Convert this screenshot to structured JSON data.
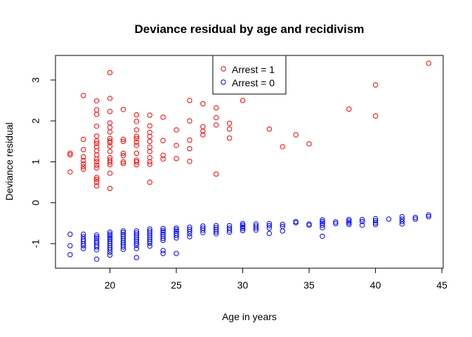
{
  "chart_data": {
    "type": "scatter",
    "title": "Deviance residual by age and recidivism",
    "xlabel": "Age in years",
    "ylabel": "Deviance residual",
    "xlim": [
      15.9,
      45.1
    ],
    "ylim": [
      -1.6,
      3.6
    ],
    "xticks": [
      20,
      25,
      30,
      35,
      40,
      45
    ],
    "yticks": [
      -1,
      0,
      1,
      2,
      3
    ],
    "grid": false,
    "legend_position": "top-center",
    "series": [
      {
        "name": "Arrest = 1",
        "color": "#ff0000",
        "points": [
          [
            17,
            0.75
          ],
          [
            17,
            1.17
          ],
          [
            17,
            1.21
          ],
          [
            18,
            0.82
          ],
          [
            18,
            0.88
          ],
          [
            18,
            0.95
          ],
          [
            18,
            1.03
          ],
          [
            18,
            1.12
          ],
          [
            18,
            1.3
          ],
          [
            18,
            1.55
          ],
          [
            18,
            2.62
          ],
          [
            19,
            0.41
          ],
          [
            19,
            0.5
          ],
          [
            19,
            0.57
          ],
          [
            19,
            0.62
          ],
          [
            19,
            0.85
          ],
          [
            19,
            0.92
          ],
          [
            19,
            1.0
          ],
          [
            19,
            1.07
          ],
          [
            19,
            1.17
          ],
          [
            19,
            1.27
          ],
          [
            19,
            1.37
          ],
          [
            19,
            1.45
          ],
          [
            19,
            1.51
          ],
          [
            19,
            1.63
          ],
          [
            19,
            1.87
          ],
          [
            19,
            2.16
          ],
          [
            19,
            2.27
          ],
          [
            19,
            2.49
          ],
          [
            20,
            0.35
          ],
          [
            20,
            0.72
          ],
          [
            20,
            0.93
          ],
          [
            20,
            0.99
          ],
          [
            20,
            1.04
          ],
          [
            20,
            1.1
          ],
          [
            20,
            1.25
          ],
          [
            20,
            1.38
          ],
          [
            20,
            1.47
          ],
          [
            20,
            1.51
          ],
          [
            20,
            1.57
          ],
          [
            20,
            1.73
          ],
          [
            20,
            1.84
          ],
          [
            20,
            1.95
          ],
          [
            20,
            2.23
          ],
          [
            20,
            2.55
          ],
          [
            20,
            3.18
          ],
          [
            21,
            0.96
          ],
          [
            21,
            1.0
          ],
          [
            21,
            1.15
          ],
          [
            21,
            1.21
          ],
          [
            21,
            1.5
          ],
          [
            21,
            1.55
          ],
          [
            21,
            2.28
          ],
          [
            22,
            0.93
          ],
          [
            22,
            1.0
          ],
          [
            22,
            1.04
          ],
          [
            22,
            1.21
          ],
          [
            22,
            1.4
          ],
          [
            22,
            1.48
          ],
          [
            22,
            1.57
          ],
          [
            22,
            1.62
          ],
          [
            22,
            1.78
          ],
          [
            22,
            1.99
          ],
          [
            22,
            2.15
          ],
          [
            23,
            0.5
          ],
          [
            23,
            0.94
          ],
          [
            23,
            1.0
          ],
          [
            23,
            1.1
          ],
          [
            23,
            1.25
          ],
          [
            23,
            1.36
          ],
          [
            23,
            1.5
          ],
          [
            23,
            1.62
          ],
          [
            23,
            1.72
          ],
          [
            23,
            1.88
          ],
          [
            23,
            2.14
          ],
          [
            24,
            1.07
          ],
          [
            24,
            1.16
          ],
          [
            24,
            1.52
          ],
          [
            24,
            2.09
          ],
          [
            25,
            1.08
          ],
          [
            25,
            1.4
          ],
          [
            25,
            1.78
          ],
          [
            26,
            1.01
          ],
          [
            26,
            1.32
          ],
          [
            26,
            1.53
          ],
          [
            26,
            2.0
          ],
          [
            26,
            2.5
          ],
          [
            27,
            1.66
          ],
          [
            27,
            1.75
          ],
          [
            27,
            1.86
          ],
          [
            27,
            2.42
          ],
          [
            28,
            0.7
          ],
          [
            28,
            1.9
          ],
          [
            28,
            2.08
          ],
          [
            28,
            2.32
          ],
          [
            29,
            1.58
          ],
          [
            29,
            1.8
          ],
          [
            29,
            1.94
          ],
          [
            30,
            2.5
          ],
          [
            32,
            1.8
          ],
          [
            33,
            1.37
          ],
          [
            34,
            1.66
          ],
          [
            35,
            1.44
          ],
          [
            38,
            2.29
          ],
          [
            40,
            2.12
          ],
          [
            40,
            2.88
          ],
          [
            44,
            3.41
          ]
        ]
      },
      {
        "name": "Arrest = 0",
        "color": "#0000ff",
        "points": [
          [
            17,
            -0.77
          ],
          [
            17,
            -1.05
          ],
          [
            17,
            -1.27
          ],
          [
            18,
            -0.77
          ],
          [
            18,
            -0.83
          ],
          [
            18,
            -0.89
          ],
          [
            18,
            -0.94
          ],
          [
            18,
            -1.0
          ],
          [
            18,
            -1.05
          ],
          [
            18,
            -1.12
          ],
          [
            19,
            -0.79
          ],
          [
            19,
            -0.84
          ],
          [
            19,
            -0.88
          ],
          [
            19,
            -0.93
          ],
          [
            19,
            -0.98
          ],
          [
            19,
            -1.04
          ],
          [
            19,
            -1.08
          ],
          [
            19,
            -1.15
          ],
          [
            19,
            -1.38
          ],
          [
            20,
            -0.72
          ],
          [
            20,
            -0.77
          ],
          [
            20,
            -0.81
          ],
          [
            20,
            -0.86
          ],
          [
            20,
            -0.9
          ],
          [
            20,
            -0.95
          ],
          [
            20,
            -1.0
          ],
          [
            20,
            -1.05
          ],
          [
            20,
            -1.1
          ],
          [
            20,
            -1.15
          ],
          [
            20,
            -1.21
          ],
          [
            20,
            -1.28
          ],
          [
            21,
            -0.69
          ],
          [
            21,
            -0.73
          ],
          [
            21,
            -0.78
          ],
          [
            21,
            -0.83
          ],
          [
            21,
            -0.88
          ],
          [
            21,
            -0.93
          ],
          [
            21,
            -0.98
          ],
          [
            21,
            -1.03
          ],
          [
            21,
            -1.08
          ],
          [
            21,
            -1.14
          ],
          [
            22,
            -0.69
          ],
          [
            22,
            -0.74
          ],
          [
            22,
            -0.79
          ],
          [
            22,
            -0.84
          ],
          [
            22,
            -0.89
          ],
          [
            22,
            -0.94
          ],
          [
            22,
            -0.99
          ],
          [
            22,
            -1.04
          ],
          [
            22,
            -1.12
          ],
          [
            22,
            -1.34
          ],
          [
            23,
            -0.64
          ],
          [
            23,
            -0.69
          ],
          [
            23,
            -0.74
          ],
          [
            23,
            -0.79
          ],
          [
            23,
            -0.84
          ],
          [
            23,
            -0.89
          ],
          [
            23,
            -0.94
          ],
          [
            23,
            -0.99
          ],
          [
            23,
            -1.06
          ],
          [
            24,
            -0.63
          ],
          [
            24,
            -0.68
          ],
          [
            24,
            -0.72
          ],
          [
            24,
            -0.77
          ],
          [
            24,
            -0.82
          ],
          [
            24,
            -0.87
          ],
          [
            24,
            -0.92
          ],
          [
            24,
            -1.17
          ],
          [
            24,
            -1.24
          ],
          [
            25,
            -0.62
          ],
          [
            25,
            -0.66
          ],
          [
            25,
            -0.7
          ],
          [
            25,
            -0.75
          ],
          [
            25,
            -0.8
          ],
          [
            25,
            -0.86
          ],
          [
            25,
            -1.24
          ],
          [
            26,
            -0.6
          ],
          [
            26,
            -0.65
          ],
          [
            26,
            -0.7
          ],
          [
            26,
            -0.76
          ],
          [
            26,
            -0.83
          ],
          [
            27,
            -0.57
          ],
          [
            27,
            -0.62
          ],
          [
            27,
            -0.67
          ],
          [
            27,
            -0.73
          ],
          [
            28,
            -0.56
          ],
          [
            28,
            -0.61
          ],
          [
            28,
            -0.66
          ],
          [
            28,
            -0.71
          ],
          [
            28,
            -0.76
          ],
          [
            29,
            -0.56
          ],
          [
            29,
            -0.62
          ],
          [
            29,
            -0.67
          ],
          [
            29,
            -0.72
          ],
          [
            30,
            -0.51
          ],
          [
            30,
            -0.55
          ],
          [
            30,
            -0.59
          ],
          [
            30,
            -0.63
          ],
          [
            30,
            -0.68
          ],
          [
            31,
            -0.52
          ],
          [
            31,
            -0.57
          ],
          [
            31,
            -0.62
          ],
          [
            31,
            -0.67
          ],
          [
            32,
            -0.51
          ],
          [
            32,
            -0.56
          ],
          [
            32,
            -0.62
          ],
          [
            32,
            -0.75
          ],
          [
            33,
            -0.53
          ],
          [
            33,
            -0.58
          ],
          [
            33,
            -0.69
          ],
          [
            34,
            -0.46
          ],
          [
            34,
            -0.49
          ],
          [
            35,
            -0.52
          ],
          [
            35,
            -0.55
          ],
          [
            36,
            -0.42
          ],
          [
            36,
            -0.46
          ],
          [
            36,
            -0.5
          ],
          [
            36,
            -0.55
          ],
          [
            36,
            -0.61
          ],
          [
            36,
            -0.82
          ],
          [
            37,
            -0.47
          ],
          [
            37,
            -0.51
          ],
          [
            38,
            -0.41
          ],
          [
            38,
            -0.45
          ],
          [
            38,
            -0.49
          ],
          [
            38,
            -0.53
          ],
          [
            39,
            -0.41
          ],
          [
            39,
            -0.46
          ],
          [
            39,
            -0.55
          ],
          [
            40,
            -0.39
          ],
          [
            40,
            -0.44
          ],
          [
            40,
            -0.49
          ],
          [
            40,
            -0.53
          ],
          [
            41,
            -0.4
          ],
          [
            42,
            -0.34
          ],
          [
            42,
            -0.4
          ],
          [
            42,
            -0.46
          ],
          [
            42,
            -0.52
          ],
          [
            43,
            -0.36
          ],
          [
            43,
            -0.4
          ],
          [
            44,
            -0.3
          ],
          [
            44,
            -0.34
          ]
        ]
      }
    ]
  }
}
